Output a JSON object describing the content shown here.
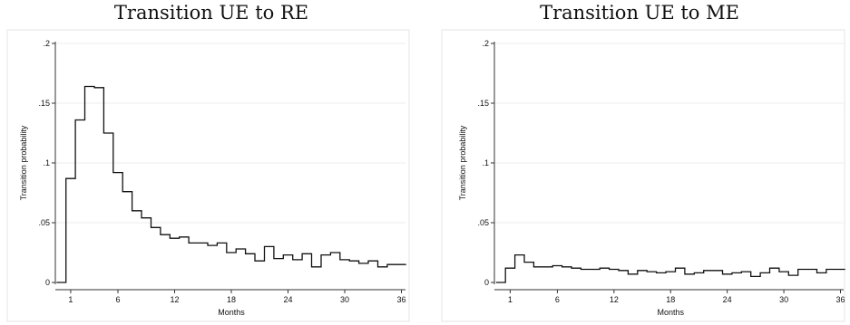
{
  "chart_data": [
    {
      "type": "step",
      "title": "Transition UE to RE",
      "xlabel": "Months",
      "ylabel": "Transition probability",
      "xlim": [
        0,
        36
      ],
      "ylim": [
        0,
        0.2
      ],
      "xticks": [
        1,
        6,
        12,
        18,
        24,
        30,
        36
      ],
      "yticks": [
        0,
        0.05,
        0.1,
        0.15,
        0.2
      ],
      "ytick_labels": [
        "0",
        ".05",
        ".1",
        ".15",
        ".2"
      ],
      "grid": true,
      "x": [
        0,
        1,
        2,
        3,
        4,
        5,
        6,
        7,
        8,
        9,
        10,
        11,
        12,
        13,
        14,
        15,
        16,
        17,
        18,
        19,
        20,
        21,
        22,
        23,
        24,
        25,
        26,
        27,
        28,
        29,
        30,
        31,
        32,
        33,
        34,
        35,
        36
      ],
      "values": [
        0,
        0.087,
        0.136,
        0.164,
        0.163,
        0.125,
        0.092,
        0.076,
        0.06,
        0.054,
        0.046,
        0.04,
        0.037,
        0.038,
        0.033,
        0.033,
        0.031,
        0.033,
        0.025,
        0.028,
        0.024,
        0.018,
        0.03,
        0.02,
        0.023,
        0.019,
        0.024,
        0.013,
        0.023,
        0.025,
        0.019,
        0.018,
        0.016,
        0.018,
        0.013,
        0.015,
        0.015
      ]
    },
    {
      "type": "step",
      "title": "Transition UE to ME",
      "xlabel": "Months",
      "ylabel": "Transition probability",
      "xlim": [
        0,
        36
      ],
      "ylim": [
        0,
        0.2
      ],
      "xticks": [
        1,
        6,
        12,
        18,
        24,
        30,
        36
      ],
      "yticks": [
        0,
        0.05,
        0.1,
        0.15,
        0.2
      ],
      "ytick_labels": [
        "0",
        ".05",
        ".1",
        ".15",
        ".2"
      ],
      "grid": true,
      "x": [
        0,
        1,
        2,
        3,
        4,
        5,
        6,
        7,
        8,
        9,
        10,
        11,
        12,
        13,
        14,
        15,
        16,
        17,
        18,
        19,
        20,
        21,
        22,
        23,
        24,
        25,
        26,
        27,
        28,
        29,
        30,
        31,
        32,
        33,
        34,
        35,
        36
      ],
      "values": [
        0,
        0.012,
        0.023,
        0.017,
        0.013,
        0.013,
        0.014,
        0.013,
        0.012,
        0.011,
        0.011,
        0.012,
        0.011,
        0.01,
        0.007,
        0.01,
        0.009,
        0.008,
        0.009,
        0.012,
        0.007,
        0.008,
        0.01,
        0.01,
        0.007,
        0.008,
        0.009,
        0.005,
        0.008,
        0.012,
        0.009,
        0.006,
        0.011,
        0.011,
        0.008,
        0.011,
        0.011
      ]
    }
  ]
}
